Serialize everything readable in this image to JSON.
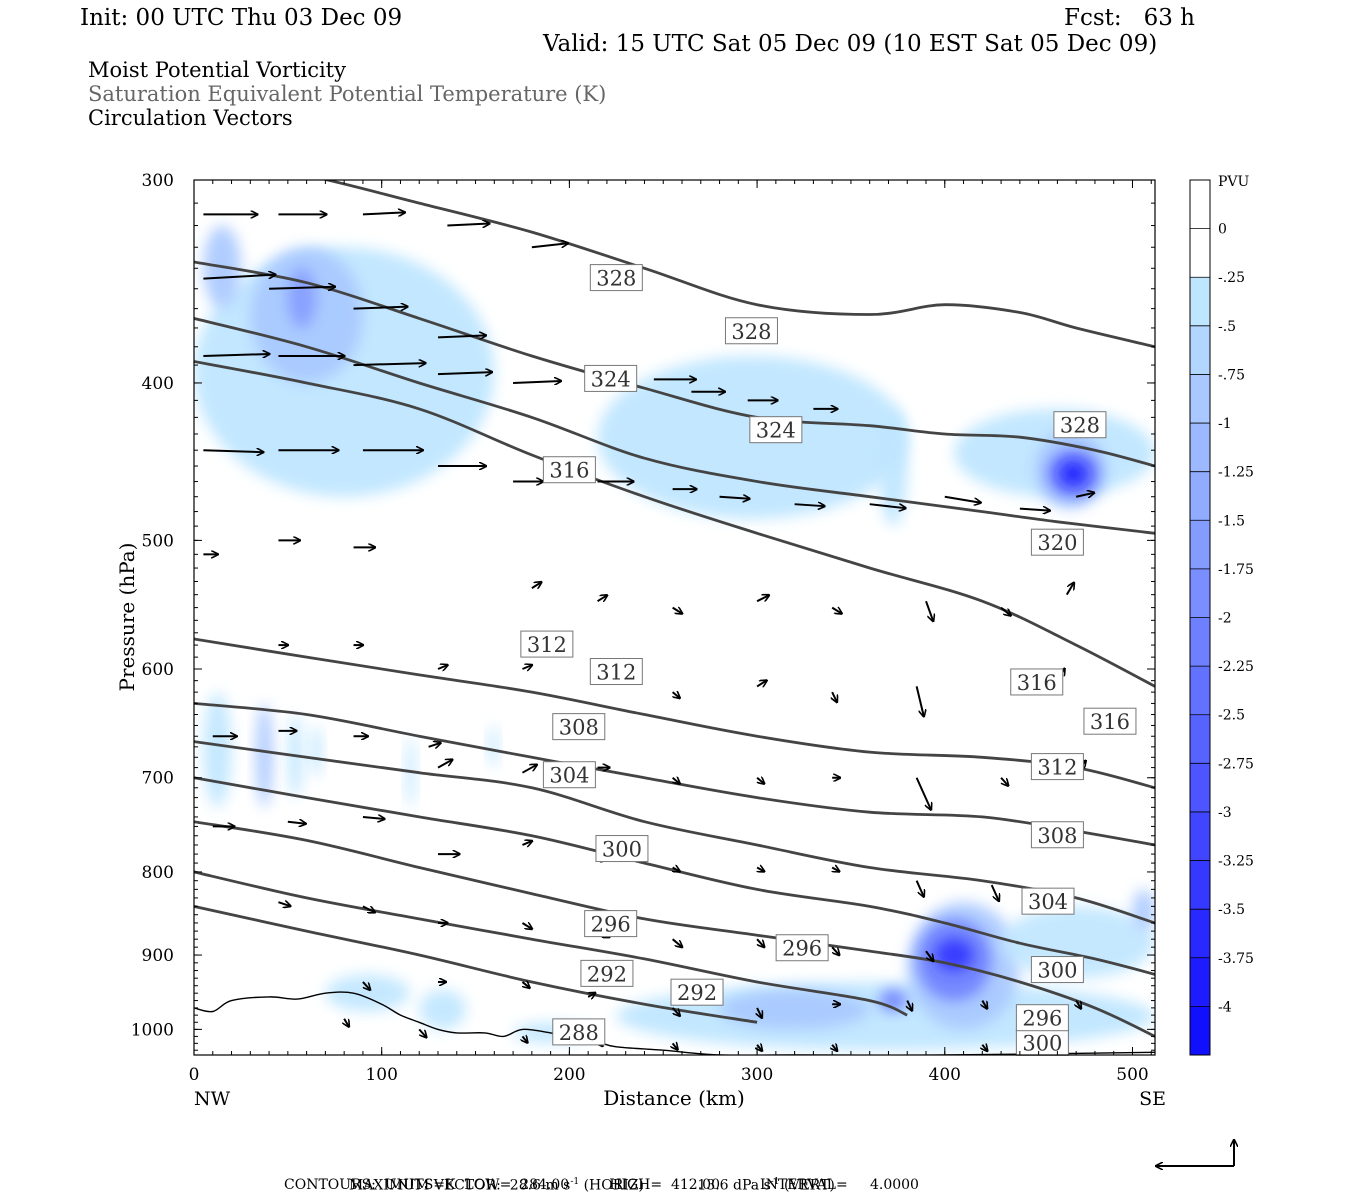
{
  "header": {
    "init": "Init: 00 UTC Thu 03 Dec 09",
    "fcst": "Fcst:   63 h",
    "valid": "Valid: 15 UTC Sat 05 Dec 09 (10 EST Sat 05 Dec 09)"
  },
  "fields": [
    {
      "label": "Moist Potential Vorticity",
      "color": "#000000"
    },
    {
      "label": "Saturation Equivalent Potential Temperature (K)",
      "color": "#666666"
    },
    {
      "label": "Circulation Vectors",
      "color": "#000000"
    }
  ],
  "chart_data": {
    "type": "contour",
    "xlabel": "Distance (km)",
    "ylabel": "Pressure (hPa)",
    "xlim": [
      0,
      512
    ],
    "ylim": [
      1037,
      300
    ],
    "y_scale": "log",
    "x_ticks": [
      "0",
      "100",
      "200",
      "300",
      "400",
      "500"
    ],
    "x_tick_values": [
      0,
      100,
      200,
      300,
      400,
      500
    ],
    "y_ticks": [
      "300",
      "400",
      "500",
      "600",
      "700",
      "800",
      "900",
      "1000"
    ],
    "y_tick_values": [
      300,
      400,
      500,
      600,
      700,
      800,
      900,
      1000
    ],
    "x_endpoints": {
      "left": "NW",
      "right": "SE"
    },
    "colorbar": {
      "title": "PVU",
      "labels": [
        "0",
        "-.25",
        "-.5",
        "-.75",
        "-1",
        "-1.25",
        "-1.5",
        "-1.75",
        "-2",
        "-2.25",
        "-2.5",
        "-2.75",
        "-3",
        "-3.25",
        "-3.5",
        "-3.75",
        "-4"
      ],
      "colors": [
        "#ffffff",
        "#ffffff",
        "#bfe6ff",
        "#b3d6ff",
        "#a8c8ff",
        "#9cb9ff",
        "#91abff",
        "#859cff",
        "#7a8eff",
        "#6e80ff",
        "#6371ff",
        "#5763ff",
        "#4c55ff",
        "#4046ff",
        "#3538ff",
        "#2929ff",
        "#1e1bff",
        "#1010ff"
      ]
    },
    "theta_e_contours": [
      {
        "label": "328",
        "points": [
          [
            0,
            290
          ],
          [
            60,
            298
          ],
          [
            120,
            310
          ],
          [
            180,
            323
          ],
          [
            240,
            340
          ],
          [
            300,
            358
          ],
          [
            360,
            363
          ],
          [
            400,
            358
          ],
          [
            440,
            362
          ],
          [
            470,
            370
          ],
          [
            512,
            380
          ]
        ]
      },
      {
        "label": "324",
        "points": [
          [
            0,
            337
          ],
          [
            60,
            347
          ],
          [
            120,
            365
          ],
          [
            180,
            385
          ],
          [
            240,
            403
          ],
          [
            300,
            420
          ],
          [
            360,
            425
          ],
          [
            400,
            430
          ],
          [
            440,
            432
          ],
          [
            480,
            440
          ],
          [
            512,
            450
          ]
        ]
      },
      {
        "label": "320",
        "points": [
          [
            0,
            365
          ],
          [
            60,
            380
          ],
          [
            120,
            400
          ],
          [
            180,
            420
          ],
          [
            240,
            445
          ],
          [
            300,
            460
          ],
          [
            360,
            470
          ],
          [
            420,
            480
          ],
          [
            460,
            487
          ],
          [
            512,
            495
          ]
        ]
      },
      {
        "label": "316",
        "points": [
          [
            0,
            388
          ],
          [
            60,
            400
          ],
          [
            120,
            415
          ],
          [
            180,
            443
          ],
          [
            240,
            470
          ],
          [
            300,
            495
          ],
          [
            360,
            520
          ],
          [
            420,
            545
          ],
          [
            470,
            580
          ],
          [
            512,
            615
          ]
        ]
      },
      {
        "label": "312",
        "points": [
          [
            0,
            575
          ],
          [
            60,
            590
          ],
          [
            120,
            605
          ],
          [
            180,
            620
          ],
          [
            240,
            640
          ],
          [
            300,
            660
          ],
          [
            360,
            675
          ],
          [
            420,
            680
          ],
          [
            470,
            690
          ],
          [
            512,
            710
          ]
        ]
      },
      {
        "label": "308",
        "points": [
          [
            0,
            630
          ],
          [
            60,
            640
          ],
          [
            120,
            660
          ],
          [
            180,
            680
          ],
          [
            240,
            700
          ],
          [
            300,
            720
          ],
          [
            360,
            735
          ],
          [
            420,
            740
          ],
          [
            470,
            755
          ],
          [
            512,
            770
          ]
        ]
      },
      {
        "label": "304",
        "points": [
          [
            0,
            665
          ],
          [
            60,
            680
          ],
          [
            120,
            695
          ],
          [
            180,
            710
          ],
          [
            240,
            745
          ],
          [
            300,
            770
          ],
          [
            360,
            795
          ],
          [
            420,
            810
          ],
          [
            470,
            830
          ],
          [
            512,
            860
          ]
        ]
      },
      {
        "label": "300",
        "points": [
          [
            0,
            700
          ],
          [
            60,
            720
          ],
          [
            120,
            740
          ],
          [
            180,
            760
          ],
          [
            240,
            790
          ],
          [
            300,
            820
          ],
          [
            360,
            840
          ],
          [
            400,
            860
          ],
          [
            440,
            885
          ],
          [
            480,
            905
          ],
          [
            512,
            925
          ]
        ]
      },
      {
        "label": "296",
        "points": [
          [
            0,
            745
          ],
          [
            60,
            765
          ],
          [
            120,
            795
          ],
          [
            180,
            825
          ],
          [
            240,
            855
          ],
          [
            300,
            875
          ],
          [
            360,
            895
          ],
          [
            400,
            910
          ],
          [
            440,
            935
          ],
          [
            480,
            970
          ],
          [
            512,
            1010
          ]
        ]
      },
      {
        "label": "292",
        "points": [
          [
            0,
            800
          ],
          [
            60,
            830
          ],
          [
            120,
            855
          ],
          [
            180,
            880
          ],
          [
            240,
            905
          ],
          [
            300,
            935
          ],
          [
            360,
            960
          ],
          [
            380,
            980
          ]
        ]
      },
      {
        "label": "288",
        "points": [
          [
            0,
            840
          ],
          [
            60,
            870
          ],
          [
            120,
            900
          ],
          [
            180,
            935
          ],
          [
            240,
            965
          ],
          [
            300,
            990
          ]
        ]
      }
    ],
    "mpv_regions": [
      {
        "name": "upper-nw",
        "pressure_range": [
          300,
          480
        ],
        "distance_range": [
          0,
          160
        ],
        "min_pvu": -1.75
      },
      {
        "name": "upper-center",
        "pressure_range": [
          380,
          490
        ],
        "distance_range": [
          215,
          380
        ],
        "min_pvu": -0.75
      },
      {
        "name": "upper-se",
        "pressure_range": [
          420,
          480
        ],
        "distance_range": [
          440,
          490
        ],
        "min_pvu": -4
      },
      {
        "name": "mid-nw",
        "pressure_range": [
          620,
          740
        ],
        "distance_range": [
          0,
          160
        ],
        "min_pvu": -1.25
      },
      {
        "name": "low-se",
        "pressure_range": [
          820,
          1030
        ],
        "distance_range": [
          210,
          512
        ],
        "min_pvu": -3.5
      }
    ],
    "annotations": [
      "MAXIMUM VECTOR:  28.6 m s$^{-1}$ (HORIZ)          13.6 dPa s$^{-1}$ (VERT)"
    ]
  },
  "footer": {
    "max_vector_label": "MAXIMUM VECTOR:",
    "horiz_value": "28.6 m s",
    "horiz_unit": "(HORIZ)",
    "vert_value": "13.6 dPa s",
    "vert_unit": "(VERT)",
    "contours_line": "CONTOURS:  UNITS=K  LOW=  284.00         HIGH=  412.00         INTERVAL=     4.0000"
  }
}
